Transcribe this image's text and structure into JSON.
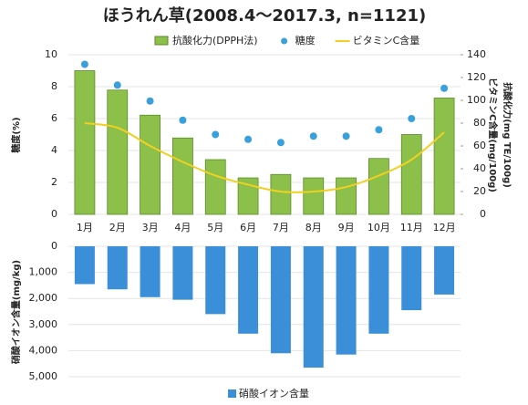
{
  "chart_data": [
    {
      "type": "combo",
      "title": "ほうれん草(2008.4～2017.3, n=1121)",
      "ylabel": "糖度(%)",
      "y2labels": [
        "ビタミンC含量(mg/100g)",
        "抗酸化力(mg TE/100g)"
      ],
      "categories": [
        "1月",
        "2月",
        "3月",
        "4月",
        "5月",
        "6月",
        "7月",
        "8月",
        "9月",
        "10月",
        "11月",
        "12月"
      ],
      "ylim": [
        0,
        10
      ],
      "yticks": [
        0,
        2,
        4,
        6,
        8,
        10
      ],
      "y2lim": [
        0,
        140
      ],
      "y2ticks": [
        0,
        20,
        40,
        60,
        80,
        100,
        120,
        140
      ],
      "series": [
        {
          "name": "抗酸化力(DPPH法)",
          "type": "bar",
          "axis": "y2",
          "color": "#8dc04a",
          "values": [
            126,
            109,
            87,
            67,
            48,
            32,
            35,
            32,
            32,
            49,
            70,
            102
          ]
        },
        {
          "name": "糖度",
          "type": "scatter",
          "axis": "y",
          "color": "#3aa0dc",
          "values": [
            9.4,
            8.1,
            7.1,
            5.9,
            5.0,
            4.7,
            4.5,
            4.9,
            4.9,
            5.3,
            6.0,
            7.9
          ]
        },
        {
          "name": "ビタミンC含量",
          "type": "line",
          "axis": "y2",
          "color": "#f0d020",
          "values": [
            80,
            76,
            60,
            46,
            34,
            26,
            20,
            20,
            24,
            34,
            48,
            72
          ]
        }
      ]
    },
    {
      "type": "bar",
      "yreverse": true,
      "ylabel": "硝酸イオン含量(mg/kg)",
      "ylim": [
        0,
        5000
      ],
      "yticks": [
        0,
        {
          "value": 1000,
          "label": "1,000"
        },
        {
          "value": 2000,
          "label": "2,000"
        },
        {
          "value": 3000,
          "label": "3,000"
        },
        {
          "value": 4000,
          "label": "4,000"
        },
        {
          "value": 5000,
          "label": "5,000"
        }
      ],
      "series": [
        {
          "name": "硝酸イオン含量",
          "color": "#3b8fd8",
          "values": [
            1450,
            1650,
            1950,
            2050,
            2600,
            3350,
            4100,
            4650,
            4150,
            3350,
            2450,
            1850
          ]
        }
      ]
    }
  ]
}
